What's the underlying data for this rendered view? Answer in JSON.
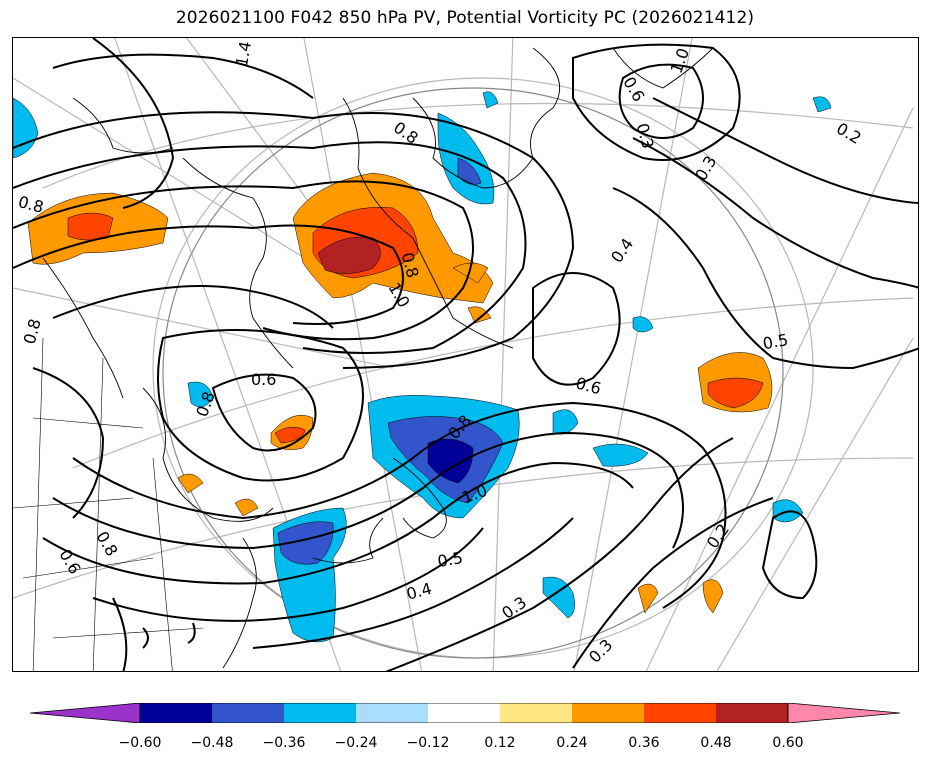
{
  "title": "2026021100 F042 850 hPa PV, Potential Vorticity PC (2026021412)",
  "colorbar": {
    "ticks": [
      "−0.60",
      "−0.48",
      "−0.36",
      "−0.24",
      "−0.12",
      "0.12",
      "0.24",
      "0.36",
      "0.48",
      "0.60"
    ],
    "colors": [
      "#9933cc",
      "#000099",
      "#3355cc",
      "#00bbee",
      "#aaddff",
      "#ffffff",
      "#ffe680",
      "#ff9900",
      "#ff4400",
      "#b22222",
      "#ff88aa"
    ]
  },
  "contour_labels": [
    "1.4",
    "0.8",
    "0.8",
    "1.0",
    "0.8",
    "1.0",
    "0.6",
    "0.8",
    "0.8",
    "1.0",
    "0.6",
    "0.5",
    "0.4",
    "0.3",
    "0.3",
    "0.2",
    "0.3",
    "0.4",
    "0.5",
    "0.2",
    "0.6",
    "0.8",
    "0.6",
    "0.8",
    "0.3"
  ]
}
